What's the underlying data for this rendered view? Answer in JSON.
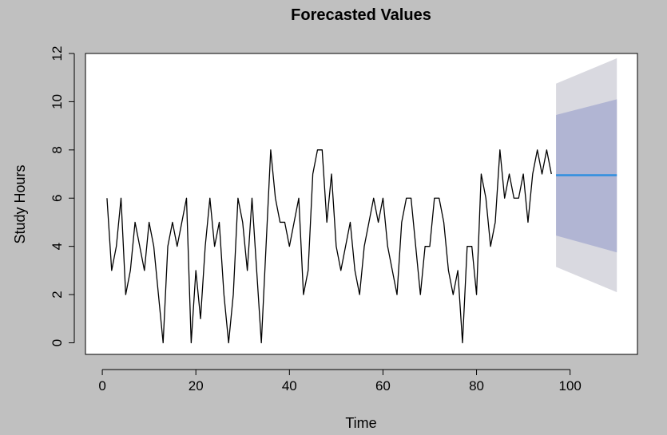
{
  "chart_data": {
    "type": "line",
    "title": "Forecasted Values",
    "xlabel": "Time",
    "ylabel": "Study Hours",
    "xlim": [
      -3.6,
      114.4
    ],
    "ylim": [
      -0.48,
      12.0
    ],
    "xticks": [
      0,
      20,
      40,
      60,
      80,
      100
    ],
    "yticks": [
      0,
      2,
      4,
      6,
      8,
      10,
      12
    ],
    "grid": false,
    "colors": {
      "background": "#c0c0c0",
      "plot_background": "#ffffff",
      "series_line": "#000000",
      "forecast_line": "#2f8fe0",
      "band_80": "#b1b5d3",
      "band_95": "#d9d9e0"
    },
    "series": [
      {
        "x": [
          1,
          2,
          3,
          4,
          5,
          6,
          7,
          8,
          9,
          10,
          11,
          12,
          13,
          14,
          15,
          16,
          17,
          18,
          19,
          20,
          21,
          22,
          23,
          24,
          25,
          26,
          27,
          28,
          29,
          30,
          31,
          32,
          33,
          34,
          35,
          36,
          37,
          38,
          39,
          40,
          41,
          42,
          43,
          44,
          45,
          46,
          47,
          48,
          49,
          50,
          51,
          52,
          53,
          54,
          55,
          56,
          57,
          58,
          59,
          60,
          61,
          62,
          63,
          64,
          65,
          66,
          67,
          68,
          69,
          70,
          71,
          72,
          73,
          74,
          75,
          76,
          77,
          78,
          79,
          80,
          81,
          82,
          83,
          84,
          85,
          86,
          87,
          88,
          89,
          90,
          91,
          92,
          93,
          94,
          95,
          96
        ],
        "values": [
          6,
          3,
          4,
          6,
          2,
          3,
          5,
          4,
          3,
          5,
          4,
          2,
          0,
          4,
          5,
          4,
          5,
          6,
          0,
          3,
          1,
          4,
          6,
          4,
          5,
          2,
          0,
          2,
          6,
          5,
          3,
          6,
          3,
          0,
          4,
          8,
          6,
          5,
          5,
          4,
          5,
          6,
          2,
          3,
          7,
          8,
          8,
          5,
          7,
          4,
          3,
          4,
          5,
          3,
          2,
          4,
          5,
          6,
          5,
          6,
          4,
          3,
          2,
          5,
          6,
          6,
          4,
          2,
          4,
          4,
          6,
          6,
          5,
          3,
          2,
          3,
          0,
          4,
          4,
          2,
          7,
          6,
          4,
          5,
          8,
          6,
          7,
          6,
          6,
          7,
          5,
          7,
          8,
          7,
          8,
          7
        ]
      }
    ],
    "forecast": {
      "x_start": 97,
      "x_end": 110,
      "mean": 6.95,
      "lower80": [
        4.45,
        3.75
      ],
      "upper80": [
        9.45,
        10.1
      ],
      "lower95": [
        3.15,
        2.1
      ],
      "upper95": [
        10.75,
        11.8
      ]
    }
  }
}
